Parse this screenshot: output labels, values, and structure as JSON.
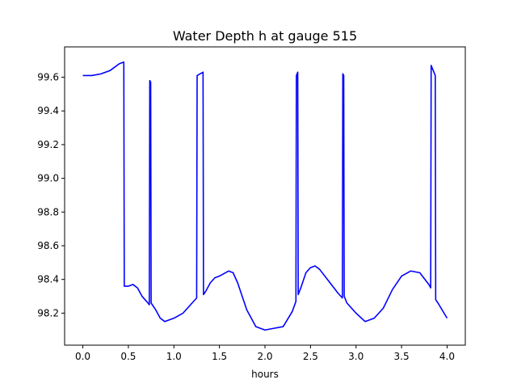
{
  "chart_data": {
    "type": "line",
    "title": "Water Depth h at gauge 515",
    "xlabel": "hours",
    "ylabel": "",
    "xlim": [
      -0.2,
      4.2
    ],
    "ylim": [
      98.01,
      99.78
    ],
    "xticks": [
      0.0,
      0.5,
      1.0,
      1.5,
      2.0,
      2.5,
      3.0,
      3.5,
      4.0
    ],
    "xtick_labels": [
      "0.0",
      "0.5",
      "1.0",
      "1.5",
      "2.0",
      "2.5",
      "3.0",
      "3.5",
      "4.0"
    ],
    "yticks": [
      98.2,
      98.4,
      98.6,
      98.8,
      99.0,
      99.2,
      99.4,
      99.6
    ],
    "ytick_labels": [
      "98.2",
      "98.4",
      "98.6",
      "98.8",
      "99.0",
      "99.2",
      "99.4",
      "99.6"
    ],
    "grid": false,
    "legend": "none",
    "series": [
      {
        "color": "#0000ff",
        "x": [
          0.0,
          0.1,
          0.2,
          0.3,
          0.4,
          0.45,
          0.455,
          0.5,
          0.55,
          0.6,
          0.65,
          0.7,
          0.73,
          0.735,
          0.745,
          0.75,
          0.8,
          0.85,
          0.9,
          1.0,
          1.1,
          1.2,
          1.25,
          1.255,
          1.32,
          1.325,
          1.35,
          1.4,
          1.45,
          1.5,
          1.6,
          1.65,
          1.7,
          1.8,
          1.9,
          2.0,
          2.1,
          2.2,
          2.3,
          2.34,
          2.345,
          2.36,
          2.365,
          2.4,
          2.45,
          2.5,
          2.55,
          2.6,
          2.7,
          2.8,
          2.85,
          2.855,
          2.865,
          2.87,
          2.9,
          3.0,
          3.1,
          3.2,
          3.3,
          3.4,
          3.5,
          3.6,
          3.7,
          3.8,
          3.82,
          3.825,
          3.87,
          3.875,
          3.9,
          4.0
        ],
        "y": [
          99.61,
          99.61,
          99.62,
          99.64,
          99.68,
          99.69,
          98.36,
          98.36,
          98.37,
          98.35,
          98.3,
          98.27,
          98.25,
          99.58,
          99.57,
          98.26,
          98.22,
          98.17,
          98.15,
          98.17,
          98.2,
          98.26,
          98.29,
          99.61,
          99.63,
          98.31,
          98.33,
          98.38,
          98.41,
          98.42,
          98.45,
          98.44,
          98.38,
          98.22,
          98.12,
          98.1,
          98.11,
          98.12,
          98.21,
          98.27,
          99.61,
          99.63,
          98.31,
          98.36,
          98.44,
          98.47,
          98.48,
          98.46,
          98.39,
          98.32,
          98.29,
          99.62,
          99.61,
          98.3,
          98.26,
          98.2,
          98.15,
          98.17,
          98.23,
          98.34,
          98.42,
          98.45,
          98.44,
          98.37,
          98.35,
          99.67,
          99.61,
          98.28,
          98.26,
          98.17
        ]
      }
    ]
  }
}
